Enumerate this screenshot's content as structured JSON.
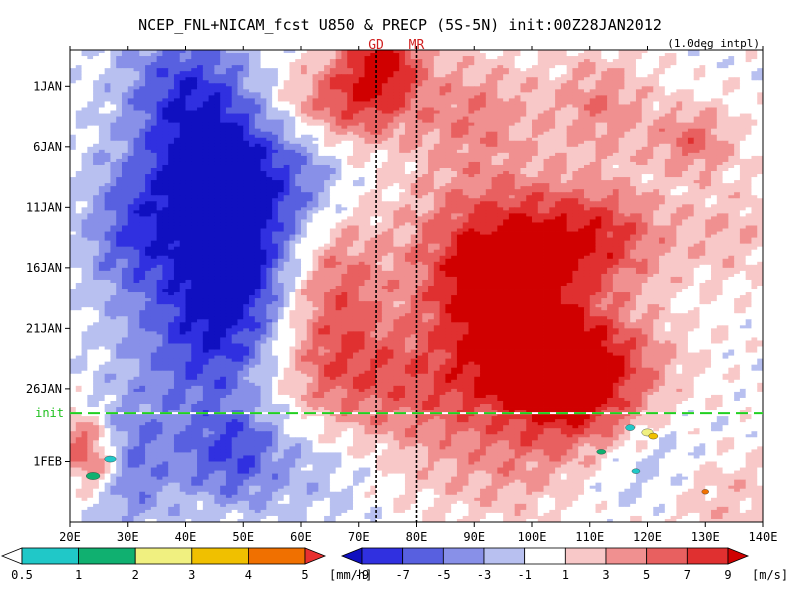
{
  "chart_data": {
    "type": "heatmap",
    "title": "NCEP_FNL+NICAM_fcst U850 & PRECP (5S-5N) init:00Z28JAN2012",
    "subtitle": "(1.0deg intpl)",
    "x_ticks": [
      "20E",
      "30E",
      "40E",
      "50E",
      "60E",
      "70E",
      "80E",
      "90E",
      "100E",
      "110E",
      "120E",
      "130E",
      "140E"
    ],
    "xlim_deg_east": [
      20,
      140
    ],
    "y_ticks": [
      "1JAN",
      "6JAN",
      "11JAN",
      "16JAN",
      "21JAN",
      "26JAN",
      "1FEB"
    ],
    "ylim_days_from_1JAN": [
      -3,
      36
    ],
    "reference_lines": [
      {
        "label": "GD",
        "lon": 73
      },
      {
        "label": "MR",
        "lon": 80
      }
    ],
    "init_line": {
      "label": "init",
      "day": 27
    },
    "precip_colorbar": {
      "labels": [
        "0.5",
        "1",
        "2",
        "3",
        "4",
        "5"
      ],
      "unit": "[mm/h]",
      "colors": [
        "#ffffff",
        "#20c8c8",
        "#10b070",
        "#f0f080",
        "#f0c000",
        "#f07000",
        "#e83030"
      ]
    },
    "u850_colorbar": {
      "labels": [
        "-9",
        "-7",
        "-5",
        "-3",
        "-1",
        "1",
        "3",
        "5",
        "7",
        "9"
      ],
      "unit": "[m/s]",
      "colors": [
        "#1010c0",
        "#3030e0",
        "#5860e0",
        "#8890e8",
        "#b8c0f0",
        "#ffffff",
        "#f8c8c8",
        "#f09090",
        "#e86060",
        "#e03030",
        "#d00000"
      ]
    }
  }
}
